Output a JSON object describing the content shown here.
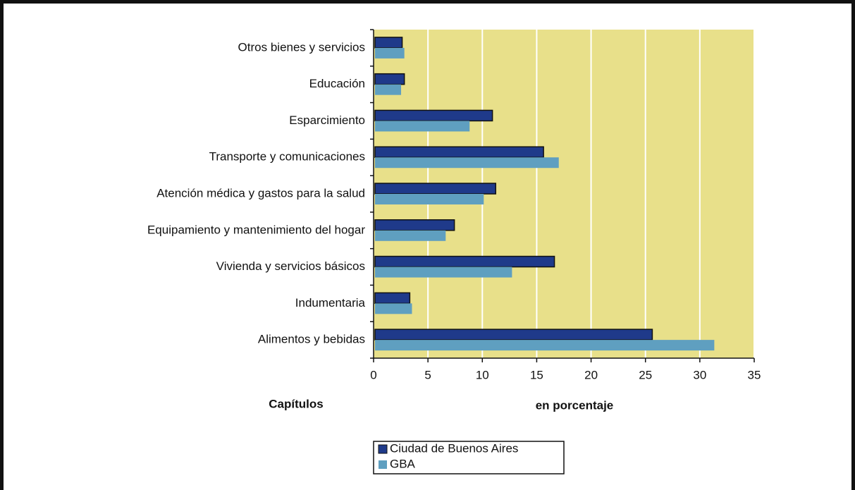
{
  "chart_data": {
    "type": "bar",
    "orientation": "horizontal",
    "categories": [
      "Otros bienes y servicios",
      "Educación",
      "Esparcimiento",
      "Transporte y comunicaciones",
      "Atención médica y gastos para la salud",
      "Equipamiento y mantenimiento del hogar",
      "Vivienda y servicios básicos",
      "Indumentaria",
      "Alimentos y bebidas"
    ],
    "series": [
      {
        "name": "Ciudad de Buenos Aires",
        "color": "#1f3a8a",
        "values": [
          2.5,
          2.7,
          10.8,
          15.5,
          11.1,
          7.3,
          16.5,
          3.2,
          25.5
        ]
      },
      {
        "name": "GBA",
        "color": "#5f9fc0",
        "values": [
          2.7,
          2.4,
          8.7,
          16.9,
          10.0,
          6.5,
          12.6,
          3.4,
          31.2
        ]
      }
    ],
    "xlim": [
      0,
      35
    ],
    "xticks": [
      0,
      5,
      10,
      15,
      20,
      25,
      30,
      35
    ],
    "ylabel": "Capítulos",
    "xlabel": "en porcentaje",
    "grid": true,
    "plot_background": "#e8e08a"
  }
}
